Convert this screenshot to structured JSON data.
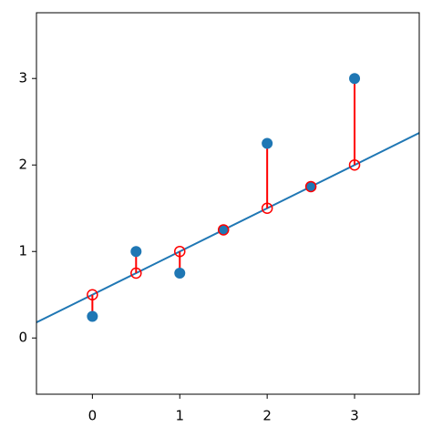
{
  "chart_data": {
    "type": "scatter",
    "x": [
      0,
      0.5,
      1,
      1.5,
      2,
      2.5,
      3
    ],
    "series": [
      {
        "color": "#1f77b4",
        "marker": "filled",
        "values": [
          0.25,
          1,
          0.75,
          1.25,
          2.25,
          1.75,
          3
        ]
      },
      {
        "color": "#ff0000",
        "marker": "hollow",
        "values": [
          0.5,
          0.75,
          1,
          1.25,
          1.5,
          1.75,
          2
        ]
      }
    ],
    "fit_line_color": "#1f77b4",
    "residual_color": "#ff0000",
    "xlim": [
      -0.64,
      3.74
    ],
    "ylim": [
      -0.65,
      3.76
    ],
    "xticks": [
      0,
      1,
      2,
      3
    ],
    "yticks": [
      0,
      1,
      2,
      3
    ]
  }
}
